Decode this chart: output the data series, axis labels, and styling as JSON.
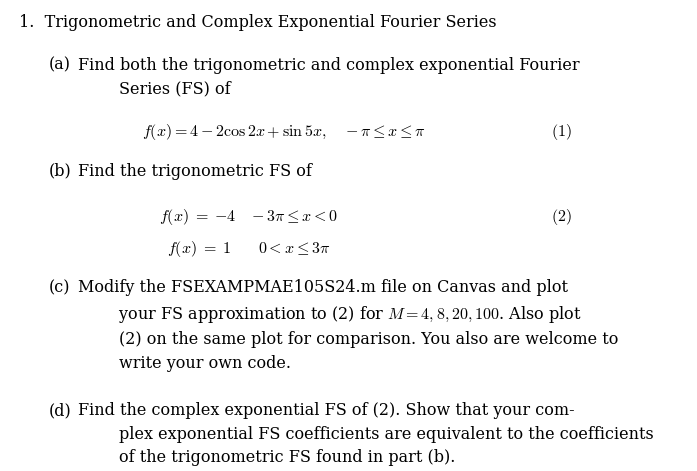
{
  "bg_color": "#ffffff",
  "text_color": "#000000",
  "fig_width": 6.97,
  "fig_height": 4.71,
  "title": "1.\\enspace Trigonometric and Complex Exponential Fourier Series",
  "part_a_label": "(a)",
  "part_a_text": "Find both the trigonometric and complex exponential Fourier\n    Series (FS) of",
  "eq1": "$f(x) = 4 - 2\\cos 2x + \\sin 5x, \\quad -\\pi \\leq x \\leq \\pi$",
  "eq1_num": "(1)",
  "part_b_label": "(b)",
  "part_b_text": "Find the trigonometric FS of",
  "eq2a": "$f(x) \\; = \\; {-4} \\quad -3\\pi \\leq x < 0$",
  "eq2b": "$f(x) \\; = \\; 1 \\qquad 0 < x \\leq 3\\pi$",
  "eq2_num": "(2)",
  "part_c_label": "(c)",
  "part_c_text": "Modify the FSEXAMPMAE105S24.m file on Canvas and plot\nyour FS approximation to (2) for $M = 4, 8, 20, 100$. Also plot\n(2) on the same plot for comparison. You also are welcome to\nwrite your own code.",
  "part_d_label": "(d)",
  "part_d_text": "Find the complex exponential FS of (2). Show that your com-\nplex exponential FS coefficients are equivalent to the coefficients\nof the trigonometric FS found in part (b)."
}
